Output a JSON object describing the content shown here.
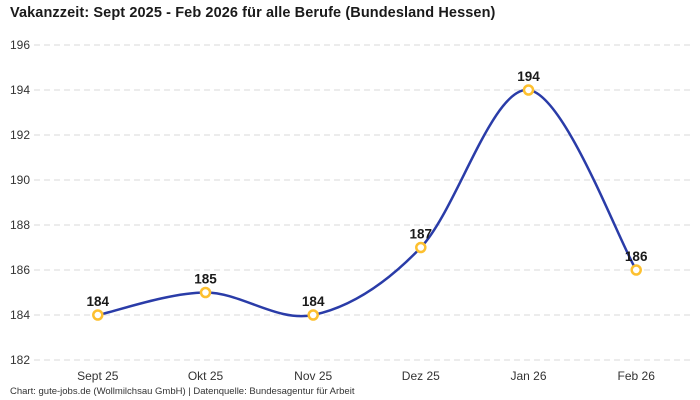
{
  "title": "Vakanzzeit: Sept 2025 - Feb 2026 für alle Berufe (Bundesland Hessen)",
  "footer": {
    "credit": "Chart: gute-jobs.de (Wollmilchsau GmbH) | Datenquelle: Bundesagentur für Arbeit"
  },
  "chart_data": {
    "type": "line",
    "title": "Vakanzzeit: Sept 2025 - Feb 2026 für alle Berufe (Bundesland Hessen)",
    "categories": [
      "Sept 25",
      "Okt 25",
      "Nov 25",
      "Dez 25",
      "Jan 26",
      "Feb 26"
    ],
    "values": [
      184,
      185,
      184,
      187,
      194,
      186
    ],
    "xlabel": "",
    "ylabel": "",
    "ylim": [
      182,
      196
    ],
    "ytick_step": 2,
    "yticks": [
      182,
      184,
      186,
      188,
      190,
      192,
      194,
      196
    ],
    "grid": "horizontal-dashed",
    "legend": "none",
    "curve": "smooth-spline",
    "colors": {
      "line": "#2a3ca8",
      "marker_stroke": "#fdc02f",
      "marker_fill": "#ffffff",
      "gridline": "#d8d8d8",
      "axis_label": "#333333",
      "value_label": "#1a1a1a"
    }
  }
}
